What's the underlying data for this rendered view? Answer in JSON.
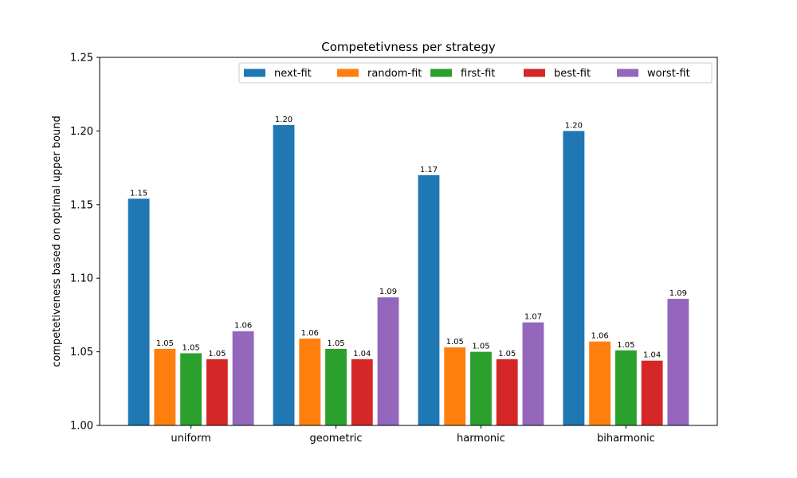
{
  "chart_data": {
    "type": "bar",
    "title": "Competetivness per strategy",
    "xlabel": "",
    "ylabel": "competetiveness based on optimal upper bound",
    "categories": [
      "uniform",
      "geometric",
      "harmonic",
      "biharmonic"
    ],
    "ylim": [
      1.0,
      1.25
    ],
    "yticks": [
      "1.00",
      "1.05",
      "1.10",
      "1.15",
      "1.20",
      "1.25"
    ],
    "legend_position": "top-right",
    "grid": false,
    "series": [
      {
        "name": "next-fit",
        "color": "#1f77b4",
        "values": [
          1.154,
          1.204,
          1.17,
          1.2
        ],
        "labels": [
          "1.15",
          "1.20",
          "1.17",
          "1.20"
        ]
      },
      {
        "name": "random-fit",
        "color": "#ff7f0e",
        "values": [
          1.052,
          1.059,
          1.053,
          1.057
        ],
        "labels": [
          "1.05",
          "1.06",
          "1.05",
          "1.06"
        ]
      },
      {
        "name": "first-fit",
        "color": "#2ca02c",
        "values": [
          1.049,
          1.052,
          1.05,
          1.051
        ],
        "labels": [
          "1.05",
          "1.05",
          "1.05",
          "1.05"
        ]
      },
      {
        "name": "best-fit",
        "color": "#d62728",
        "values": [
          1.045,
          1.045,
          1.045,
          1.044
        ],
        "labels": [
          "1.05",
          "1.04",
          "1.05",
          "1.04"
        ]
      },
      {
        "name": "worst-fit",
        "color": "#9467bd",
        "values": [
          1.064,
          1.087,
          1.07,
          1.086
        ],
        "labels": [
          "1.06",
          "1.09",
          "1.07",
          "1.09"
        ]
      }
    ]
  }
}
